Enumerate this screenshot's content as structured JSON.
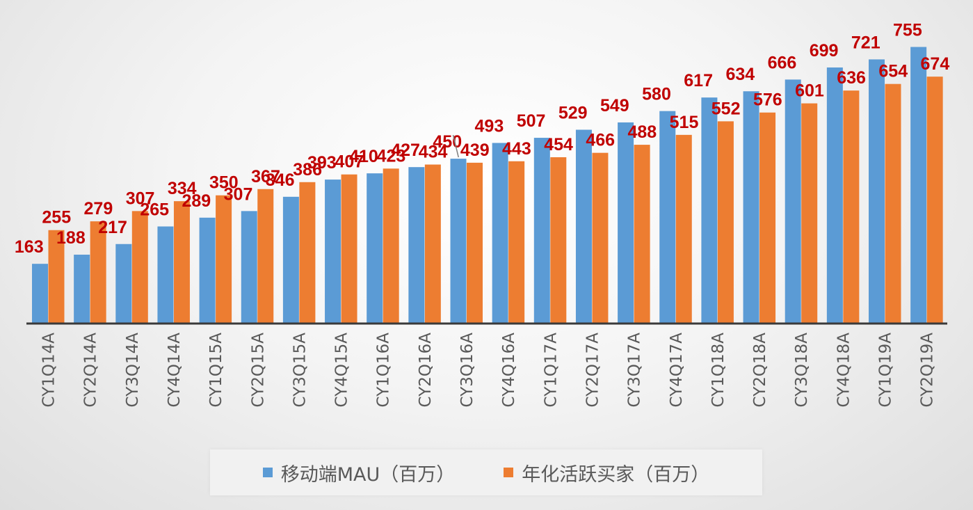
{
  "chart_data": {
    "type": "bar",
    "title": "",
    "xlabel": "",
    "ylabel": "",
    "ylim": [
      0,
      780
    ],
    "grid": false,
    "legend_position": "bottom",
    "categories": [
      "CY1Q14A",
      "CY2Q14A",
      "CY3Q14A",
      "CY4Q14A",
      "CY1Q15A",
      "CY2Q15A",
      "CY3Q15A",
      "CY4Q15A",
      "CY1Q16A",
      "CY2Q16A",
      "CY3Q16A",
      "CY4Q16A",
      "CY1Q17A",
      "CY2Q17A",
      "CY3Q17A",
      "CY4Q17A",
      "CY1Q18A",
      "CY2Q18A",
      "CY3Q18A",
      "CY4Q18A",
      "CY1Q19A",
      "CY2Q19A"
    ],
    "series": [
      {
        "name": "移动端MAU（百万）",
        "color": "#5b9bd5",
        "values": [
          163,
          188,
          217,
          265,
          289,
          307,
          346,
          393,
          410,
          427,
          450,
          493,
          507,
          529,
          549,
          580,
          617,
          634,
          666,
          699,
          721,
          755
        ]
      },
      {
        "name": "年化活跃买家（百万）",
        "color": "#ed7d31",
        "values": [
          255,
          279,
          307,
          334,
          350,
          367,
          386,
          407,
          423,
          434,
          439,
          443,
          454,
          466,
          488,
          515,
          552,
          576,
          601,
          636,
          654,
          674
        ]
      }
    ],
    "data_label_color": "#c00000"
  }
}
